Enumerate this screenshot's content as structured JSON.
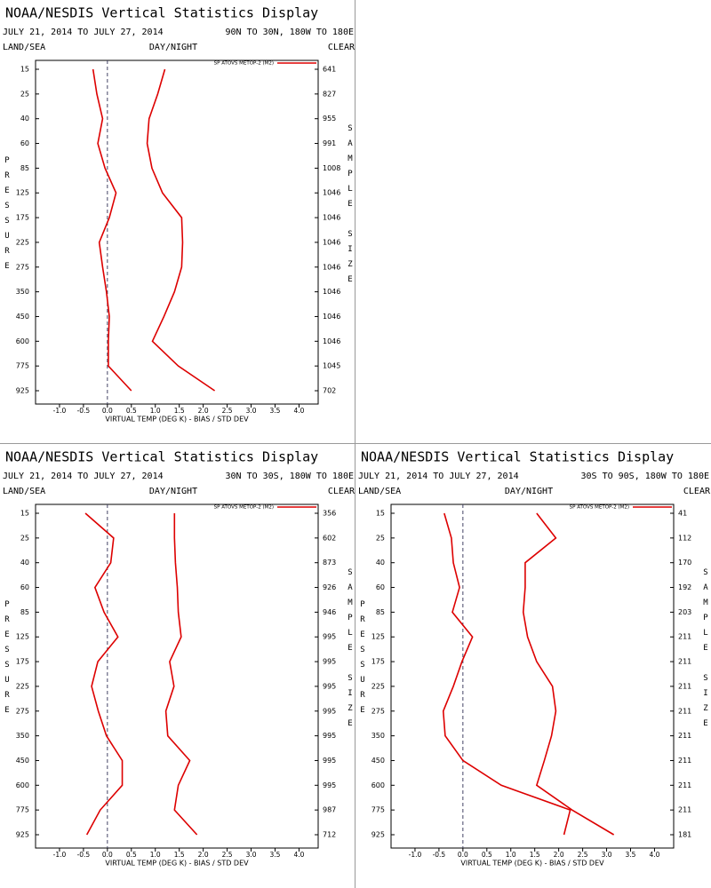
{
  "chart_data": [
    {
      "type": "line",
      "title": "NOAA/NESDIS Vertical Statistics Display",
      "date_range": "JULY 21, 2014 TO JULY 27, 2014",
      "region": "90N TO 30N, 180W TO 180E",
      "land_sea": "LAND/SEA",
      "day_night": "DAY/NIGHT",
      "clear": "CLEAR",
      "legend": "SP ATOVS METOP-2 (M2)",
      "y_label": "PRESSURE",
      "y2_label": "SAMPLE SIZE",
      "x_label": "VIRTUAL TEMP (DEG K) - BIAS / STD DEV",
      "color": "#dd0000",
      "categories": [
        "15",
        "25",
        "40",
        "60",
        "85",
        "125",
        "175",
        "225",
        "275",
        "350",
        "450",
        "600",
        "775",
        "925"
      ],
      "sample_size": [
        641,
        827,
        955,
        991,
        1008,
        1046,
        1046,
        1046,
        1046,
        1046,
        1046,
        1046,
        1045,
        702
      ],
      "series": [
        {
          "values": [
            -0.3,
            -0.22,
            -0.1,
            -0.2,
            -0.05,
            0.18,
            0.04,
            -0.17,
            -0.1,
            -0.02,
            0.04,
            0.02,
            0.02,
            0.5
          ]
        },
        {
          "values": [
            1.2,
            1.05,
            0.87,
            0.83,
            0.93,
            1.15,
            1.55,
            1.57,
            1.55,
            1.4,
            1.18,
            0.94,
            1.48,
            2.24
          ]
        }
      ],
      "xlim": [
        -1.5,
        4.4
      ],
      "xticks": [
        {
          "value": -1,
          "label": "-1.0"
        },
        -0.5,
        {
          "value": 0,
          "label": "0.0"
        },
        0.5,
        {
          "value": 1,
          "label": "1.0"
        },
        1.5,
        {
          "value": 2,
          "label": "2.0"
        },
        2.5,
        {
          "value": 3,
          "label": "3.0"
        },
        3.5,
        {
          "value": 4,
          "label": "4.0"
        }
      ]
    },
    {
      "type": "line",
      "title": "NOAA/NESDIS Vertical Statistics Display",
      "date_range": "JULY 21, 2014 TO JULY 27, 2014",
      "region": "30N TO 30S, 180W TO 180E",
      "land_sea": "LAND/SEA",
      "day_night": "DAY/NIGHT",
      "clear": "CLEAR",
      "legend": "SP ATOVS METOP-2 (M2)",
      "y_label": "PRESSURE",
      "y2_label": "SAMPLE SIZE",
      "x_label": "VIRTUAL TEMP (DEG K) - BIAS / STD DEV",
      "color": "#dd0000",
      "categories": [
        "15",
        "25",
        "40",
        "60",
        "85",
        "125",
        "175",
        "225",
        "275",
        "350",
        "450",
        "600",
        "775",
        "925"
      ],
      "sample_size": [
        356,
        602,
        873,
        926,
        946,
        995,
        995,
        995,
        995,
        995,
        995,
        995,
        987,
        712
      ],
      "series": [
        {
          "values": [
            -0.46,
            0.13,
            0.07,
            -0.26,
            -0.07,
            0.22,
            -0.2,
            -0.33,
            -0.19,
            -0.02,
            0.31,
            0.31,
            -0.15,
            -0.43
          ]
        },
        {
          "values": [
            1.4,
            1.4,
            1.42,
            1.46,
            1.48,
            1.54,
            1.3,
            1.39,
            1.22,
            1.26,
            1.72,
            1.48,
            1.4,
            1.87
          ]
        }
      ],
      "xlim": [
        -1.5,
        4.4
      ],
      "xticks": [
        {
          "value": -1,
          "label": "-1.0"
        },
        -0.5,
        {
          "value": 0,
          "label": "0.0"
        },
        0.5,
        {
          "value": 1,
          "label": "1.0"
        },
        1.5,
        {
          "value": 2,
          "label": "2.0"
        },
        2.5,
        {
          "value": 3,
          "label": "3.0"
        },
        3.5,
        {
          "value": 4,
          "label": "4.0"
        }
      ]
    },
    {
      "type": "line",
      "title": "NOAA/NESDIS Vertical Statistics Display",
      "date_range": "JULY 21, 2014 TO JULY 27, 2014",
      "region": "30S TO 90S, 180W TO 180E",
      "land_sea": "LAND/SEA",
      "day_night": "DAY/NIGHT",
      "clear": "CLEAR",
      "legend": "SP ATOVS METOP-2 (M2)",
      "y_label": "PRESSURE",
      "y2_label": "SAMPLE SIZE",
      "x_label": "VIRTUAL TEMP (DEG K) - BIAS / STD DEV",
      "color": "#dd0000",
      "categories": [
        "15",
        "25",
        "40",
        "60",
        "85",
        "125",
        "175",
        "225",
        "275",
        "350",
        "450",
        "600",
        "775",
        "925"
      ],
      "sample_size": [
        41,
        112,
        170,
        192,
        203,
        211,
        211,
        211,
        211,
        211,
        211,
        211,
        211,
        181
      ],
      "series": [
        {
          "values": [
            -0.39,
            -0.24,
            -0.2,
            -0.07,
            -0.22,
            0.2,
            -0.02,
            -0.2,
            -0.41,
            -0.37,
            0.0,
            0.8,
            2.24,
            2.11
          ]
        },
        {
          "values": [
            1.54,
            1.94,
            1.3,
            1.3,
            1.26,
            1.35,
            1.54,
            1.87,
            1.94,
            1.85,
            1.7,
            1.54,
            2.28,
            3.15
          ]
        }
      ],
      "xlim": [
        -1.5,
        4.4
      ],
      "xticks": [
        {
          "value": -1,
          "label": "-1.0"
        },
        -0.5,
        {
          "value": 0,
          "label": "0.0"
        },
        0.5,
        {
          "value": 1,
          "label": "1.0"
        },
        1.5,
        {
          "value": 2,
          "label": "2.0"
        },
        2.5,
        {
          "value": 3,
          "label": "3.0"
        },
        3.5,
        {
          "value": 4,
          "label": "4.0"
        }
      ]
    }
  ]
}
